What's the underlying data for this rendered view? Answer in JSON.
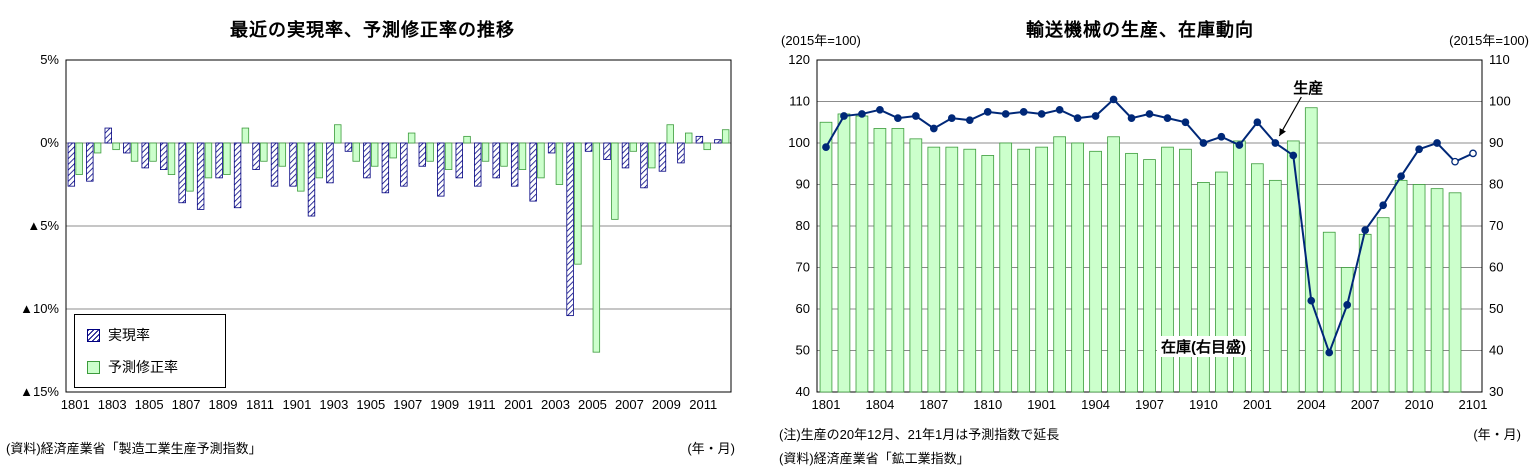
{
  "colors": {
    "navy": "#000080",
    "line_blue": "#002878",
    "bar_green_fill": "#ccffcc",
    "bar_green_stroke": "#3c9b3c",
    "grid": "#8c8c8c"
  },
  "chart_data": [
    {
      "type": "bar",
      "title": "最近の実現率、予測修正率の推移",
      "categories": [
        "1801",
        "1802",
        "1803",
        "1804",
        "1805",
        "1806",
        "1807",
        "1808",
        "1809",
        "1810",
        "1811",
        "1812",
        "1901",
        "1902",
        "1903",
        "1904",
        "1905",
        "1906",
        "1907",
        "1908",
        "1909",
        "1910",
        "1911",
        "1912",
        "2001",
        "2002",
        "2003",
        "2004",
        "2005",
        "2006",
        "2007",
        "2008",
        "2009",
        "2010",
        "2011",
        "2012"
      ],
      "series": [
        {
          "name": "実現率",
          "style": "hatched",
          "values": [
            -2.6,
            -2.3,
            0.9,
            -0.6,
            -1.5,
            -1.6,
            -3.6,
            -4.0,
            -2.1,
            -3.9,
            -1.6,
            -2.6,
            -2.6,
            -4.4,
            -2.4,
            -0.5,
            -2.1,
            -3.0,
            -2.6,
            -1.4,
            -3.2,
            -2.1,
            -2.6,
            -2.1,
            -2.6,
            -3.5,
            -0.6,
            -10.4,
            -0.5,
            -1.0,
            -1.5,
            -2.7,
            -1.7,
            -1.2,
            0.4,
            0.2
          ]
        },
        {
          "name": "予測修正率",
          "style": "green",
          "values": [
            -1.9,
            -0.6,
            -0.4,
            -1.1,
            -1.1,
            -1.9,
            -2.9,
            -2.1,
            -1.9,
            0.9,
            -1.1,
            -1.4,
            -2.9,
            -2.1,
            1.1,
            -1.1,
            -1.4,
            -0.9,
            0.6,
            -1.1,
            -1.6,
            0.4,
            -1.1,
            -1.4,
            -1.6,
            -2.1,
            -2.5,
            -7.3,
            -12.6,
            -4.6,
            -0.5,
            -1.5,
            1.1,
            0.6,
            -0.4,
            0.8
          ]
        }
      ],
      "ylim": [
        -15,
        5
      ],
      "yticks": [
        {
          "value": 5,
          "label": "5%"
        },
        {
          "value": 0,
          "label": "0%"
        },
        {
          "value": -5,
          "label": "▲5%"
        },
        {
          "value": -10,
          "label": "▲10%"
        },
        {
          "value": -15,
          "label": "▲15%"
        }
      ],
      "xtick_labels": [
        "1801",
        "1803",
        "1805",
        "1807",
        "1809",
        "1811",
        "1901",
        "1903",
        "1905",
        "1907",
        "1909",
        "1911",
        "2001",
        "2003",
        "2005",
        "2007",
        "2009",
        "2011"
      ],
      "source": "(資料)経済産業省「製造工業生産予測指数」",
      "xaxis_unit": "(年・月)"
    },
    {
      "type": "bar+line",
      "title": "輸送機械の生産、在庫動向",
      "categories": [
        "1801",
        "1802",
        "1803",
        "1804",
        "1805",
        "1806",
        "1807",
        "1808",
        "1809",
        "1810",
        "1811",
        "1812",
        "1901",
        "1902",
        "1903",
        "1904",
        "1905",
        "1906",
        "1907",
        "1908",
        "1909",
        "1910",
        "1911",
        "1912",
        "2001",
        "2002",
        "2003",
        "2004",
        "2005",
        "2006",
        "2007",
        "2008",
        "2009",
        "2010",
        "2011",
        "2012",
        "2101"
      ],
      "bar_series": {
        "name": "在庫(右目盛)",
        "axis": "right",
        "values": [
          95,
          97,
          96.5,
          93.5,
          93.5,
          91,
          89,
          89,
          88.5,
          87,
          90,
          88.5,
          89,
          91.5,
          90,
          88,
          91.5,
          87.5,
          86,
          89,
          88.5,
          80.5,
          83,
          90.5,
          85,
          81,
          90.5,
          98.5,
          68.5,
          60,
          68,
          72,
          81,
          80,
          79,
          78,
          null
        ]
      },
      "line_series": {
        "name": "生産",
        "axis": "left",
        "values": [
          99,
          106.5,
          107,
          108,
          106,
          106.5,
          103.5,
          106,
          105.5,
          107.5,
          107,
          107.5,
          107,
          108,
          106,
          106.5,
          110.5,
          106,
          107,
          106,
          105,
          100,
          101.5,
          99.5,
          105,
          100,
          97,
          62,
          49.5,
          61,
          79,
          85,
          92,
          98.5,
          100,
          95.5,
          97.5
        ],
        "forecast_from_index": 35
      },
      "left_axis": {
        "label": "(2015年=100)",
        "min": 40,
        "max": 120,
        "step": 10
      },
      "right_axis": {
        "label": "(2015年=100)",
        "min": 30,
        "max": 110,
        "step": 10
      },
      "xtick_labels": [
        "1801",
        "1804",
        "1807",
        "1810",
        "1901",
        "1904",
        "1907",
        "1910",
        "2001",
        "2004",
        "2007",
        "2010",
        "2101"
      ],
      "annotations": {
        "production_label": "生産",
        "inventory_label": "在庫(右目盛)",
        "arrow_target_category": "2002"
      },
      "notes": [
        "(注)生産の20年12月、21年1月は予測指数で延長",
        "(資料)経済産業省「鉱工業指数」"
      ],
      "xaxis_unit": "(年・月)"
    }
  ]
}
